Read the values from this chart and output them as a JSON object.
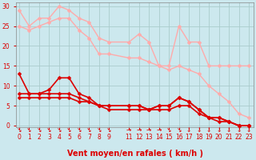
{
  "background_color": "#cce8ee",
  "grid_color": "#aacccc",
  "x_ticks": [
    0,
    1,
    2,
    3,
    4,
    5,
    6,
    7,
    8,
    9,
    11,
    12,
    13,
    14,
    15,
    16,
    17,
    18,
    19,
    20,
    21,
    22,
    23
  ],
  "xlabel": "Vent moyen/en rafales ( km/h )",
  "ylim": [
    -0.5,
    31
  ],
  "xlim": [
    -0.3,
    23.5
  ],
  "yticks": [
    0,
    5,
    10,
    15,
    20,
    25,
    30
  ],
  "lines": [
    {
      "x": [
        0,
        1,
        2,
        3,
        4,
        5,
        6,
        7,
        8,
        9,
        11,
        12,
        13,
        14,
        15,
        16,
        17,
        18,
        19,
        20,
        21,
        22,
        23
      ],
      "y": [
        29,
        25,
        27,
        27,
        30,
        29,
        27,
        26,
        22,
        21,
        21,
        23,
        21,
        15,
        15,
        25,
        21,
        21,
        15,
        15,
        15,
        15,
        15
      ],
      "color": "#ffaaaa",
      "lw": 1.0,
      "marker": "D",
      "ms": 2.5
    },
    {
      "x": [
        0,
        1,
        2,
        3,
        4,
        5,
        6,
        7,
        8,
        9,
        11,
        12,
        13,
        14,
        15,
        16,
        17,
        18,
        19,
        20,
        21,
        22,
        23
      ],
      "y": [
        25,
        24,
        25,
        26,
        27,
        27,
        24,
        22,
        18,
        18,
        17,
        17,
        16,
        15,
        14,
        15,
        14,
        13,
        10,
        8,
        6,
        3,
        2
      ],
      "color": "#ffaaaa",
      "lw": 1.0,
      "marker": "D",
      "ms": 2.5
    },
    {
      "x": [
        0,
        1,
        2,
        3,
        4,
        5,
        6,
        7,
        8,
        9,
        11,
        12,
        13,
        14,
        15,
        16,
        17,
        18,
        19,
        20,
        21,
        22,
        23
      ],
      "y": [
        13,
        8,
        8,
        9,
        12,
        12,
        8,
        7,
        5,
        5,
        5,
        5,
        4,
        5,
        5,
        7,
        6,
        4,
        2,
        2,
        1,
        0,
        0
      ],
      "color": "#dd0000",
      "lw": 1.2,
      "marker": "D",
      "ms": 2.5
    },
    {
      "x": [
        0,
        1,
        2,
        3,
        4,
        5,
        6,
        7,
        8,
        9,
        11,
        12,
        13,
        14,
        15,
        16,
        17,
        18,
        19,
        20,
        21,
        22,
        23
      ],
      "y": [
        8,
        8,
        8,
        8,
        8,
        8,
        7,
        6,
        5,
        5,
        5,
        5,
        4,
        5,
        5,
        7,
        6,
        4,
        2,
        2,
        1,
        0,
        0
      ],
      "color": "#dd0000",
      "lw": 1.2,
      "marker": "D",
      "ms": 2.5
    },
    {
      "x": [
        0,
        1,
        2,
        3,
        4,
        5,
        6,
        7,
        8,
        9,
        11,
        12,
        13,
        14,
        15,
        16,
        17,
        18,
        19,
        20,
        21,
        22,
        23
      ],
      "y": [
        7,
        7,
        7,
        7,
        7,
        7,
        6,
        6,
        5,
        4,
        4,
        4,
        4,
        4,
        4,
        5,
        5,
        3,
        2,
        1,
        1,
        0,
        0
      ],
      "color": "#dd0000",
      "lw": 1.2,
      "marker": "D",
      "ms": 2.5
    }
  ],
  "arrow_color": "#dd0000",
  "tick_fontsize": 5.5,
  "xlabel_fontsize": 7.0,
  "wind_arrows": [
    "↘",
    "↘",
    "↘",
    "↘",
    "↘",
    "↘",
    "↘",
    "↘",
    "↘",
    "↘",
    "→",
    "→",
    "→",
    "→",
    "↘",
    "↘",
    "↓",
    "↓",
    "↓",
    "↓",
    "↓",
    "↓",
    "↓"
  ]
}
